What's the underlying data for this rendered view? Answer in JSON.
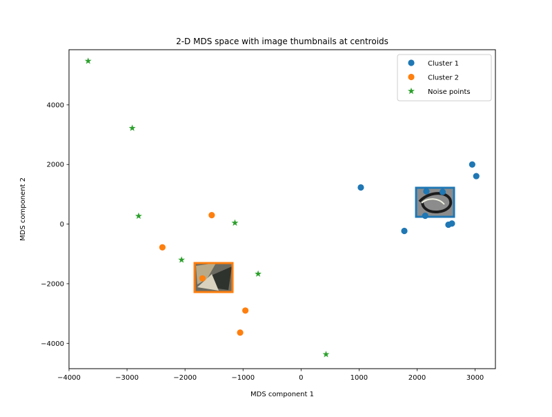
{
  "chart_data": {
    "type": "scatter",
    "title": "2-D MDS space with image thumbnails at centroids",
    "xlabel": "MDS component 1",
    "ylabel": "MDS component 2",
    "xlim": [
      -4000,
      3350
    ],
    "ylim": [
      -4850,
      5850
    ],
    "xticks": [
      -4000,
      -3000,
      -2000,
      -1000,
      0,
      1000,
      2000,
      3000
    ],
    "yticks": [
      -4000,
      -2000,
      0,
      2000,
      4000
    ],
    "grid": false,
    "legend_position": "top-right",
    "series": [
      {
        "name": "Cluster 1",
        "marker": "circle",
        "color": "#1f77b4",
        "points": [
          {
            "x": 1030,
            "y": 1230
          },
          {
            "x": 1780,
            "y": -230
          },
          {
            "x": 2140,
            "y": 280
          },
          {
            "x": 2160,
            "y": 1100
          },
          {
            "x": 2440,
            "y": 1080
          },
          {
            "x": 2540,
            "y": -20
          },
          {
            "x": 2600,
            "y": 20
          },
          {
            "x": 2950,
            "y": 2000
          },
          {
            "x": 3020,
            "y": 1610
          }
        ],
        "centroid": {
          "x": 2330,
          "y": 800
        },
        "thumbnail": "cluster-1-thumbnail"
      },
      {
        "name": "Cluster 2",
        "marker": "circle",
        "color": "#ff7f0e",
        "points": [
          {
            "x": -2390,
            "y": -780
          },
          {
            "x": -1540,
            "y": 300
          },
          {
            "x": -1700,
            "y": -1820
          },
          {
            "x": -960,
            "y": -2900
          },
          {
            "x": -1050,
            "y": -3640
          }
        ],
        "centroid": {
          "x": -1530,
          "y": -1770
        },
        "thumbnail": "cluster-2-thumbnail"
      },
      {
        "name": "Noise points",
        "marker": "star",
        "color": "#2ca02c",
        "points": [
          {
            "x": -3670,
            "y": 5470
          },
          {
            "x": -2910,
            "y": 3220
          },
          {
            "x": -2800,
            "y": 270
          },
          {
            "x": -2060,
            "y": -1200
          },
          {
            "x": -1140,
            "y": 40
          },
          {
            "x": -740,
            "y": -1670
          },
          {
            "x": 430,
            "y": -4370
          }
        ]
      }
    ]
  }
}
